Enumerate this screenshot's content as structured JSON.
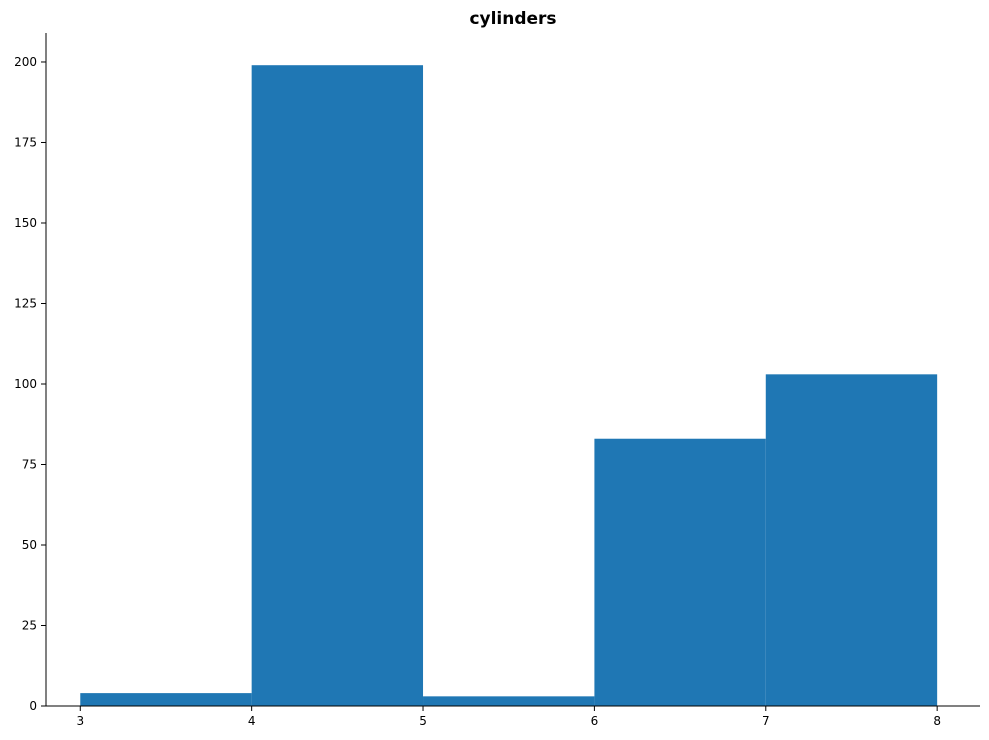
{
  "chart_data": {
    "type": "bar",
    "title": "cylinders",
    "xlabel": "",
    "ylabel": "",
    "bin_edges": [
      3,
      4,
      5,
      6,
      7,
      8
    ],
    "values": [
      4,
      199,
      3,
      83,
      103
    ],
    "xlim": [
      2.8,
      8.25
    ],
    "ylim": [
      0,
      209
    ],
    "x_ticks": [
      3,
      4,
      5,
      6,
      7,
      8
    ],
    "y_ticks": [
      0,
      25,
      50,
      75,
      100,
      125,
      150,
      175,
      200
    ],
    "bar_color": "#1f77b4",
    "grid": false,
    "legend": "none"
  }
}
